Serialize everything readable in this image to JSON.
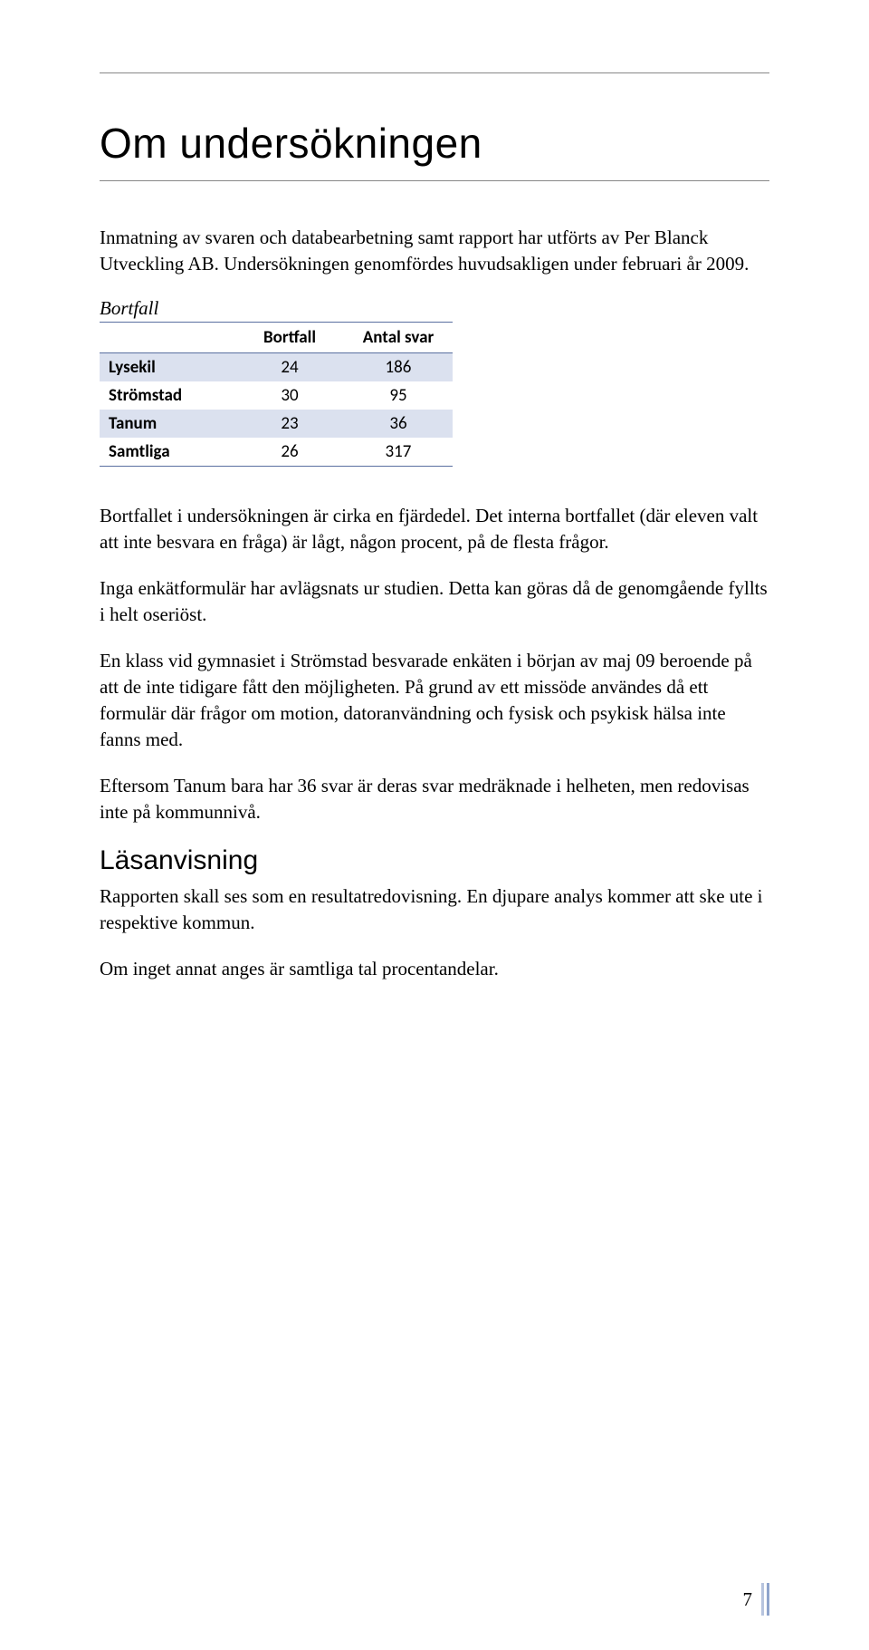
{
  "title": "Om undersökningen",
  "intro": "Inmatning av svaren och databearbetning samt rapport har utförts av Per Blanck Utveckling AB. Undersökningen genomfördes huvudsakligen under februari år 2009.",
  "table": {
    "caption": "Bortfall",
    "columns": [
      "",
      "Bortfall",
      "Antal svar"
    ],
    "rows": [
      {
        "label": "Lysekil",
        "bortfall": "24",
        "antal": "186"
      },
      {
        "label": "Strömstad",
        "bortfall": "30",
        "antal": "95"
      },
      {
        "label": "Tanum",
        "bortfall": "23",
        "antal": "36"
      },
      {
        "label": "Samtliga",
        "bortfall": "26",
        "antal": "317"
      }
    ],
    "band_color": "#dbe1ef",
    "rule_color": "#5a6fa0"
  },
  "para1": "Bortfallet i undersökningen är cirka en fjärdedel. Det interna bortfallet (där eleven valt att inte besvara en fråga) är lågt, någon procent, på de flesta frågor.",
  "para2": "Inga enkätformulär har avlägsnats ur studien. Detta kan göras då de genomgående fyllts i helt oseriöst.",
  "para3": "En klass vid gymnasiet i Strömstad besvarade enkäten i början av maj 09 beroende på att de inte tidigare fått den möjligheten. På grund av ett missöde användes då ett formulär där frågor om motion, datoranvändning och fysisk och psykisk hälsa inte fanns med.",
  "para4": "Eftersom Tanum bara har 36 svar är deras svar medräknade i helheten, men redovisas inte på kommunnivå.",
  "section2": "Läsanvisning",
  "para5": "Rapporten skall ses som en resultatredovisning. En djupare analys kommer att ske ute i respektive kommun.",
  "para6": "Om inget annat anges är samtliga tal procentandelar.",
  "page_number": "7",
  "colors": {
    "text": "#000000",
    "rule": "#888888",
    "footer_bar_light": "#b7c4de",
    "footer_bar_dark": "#8fa4cc"
  }
}
